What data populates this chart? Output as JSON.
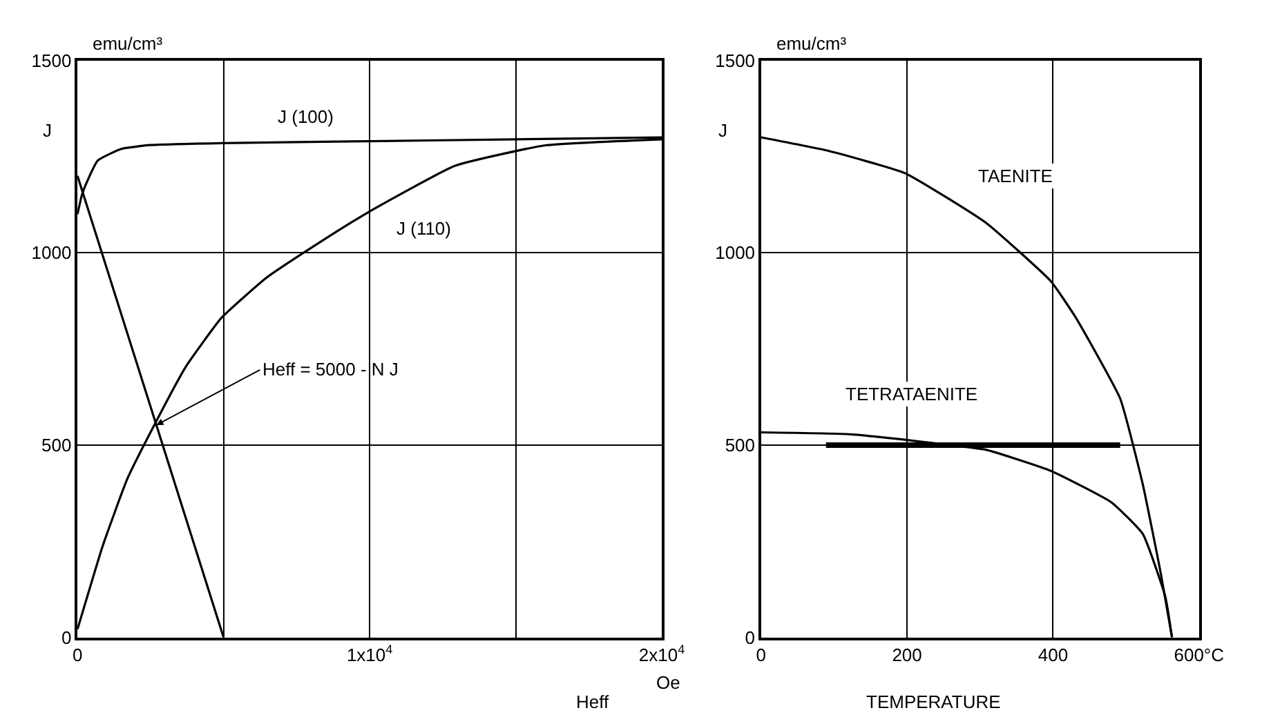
{
  "chart_data": [
    {
      "type": "line",
      "xlabel": "Heff",
      "ylabel": "J",
      "xlim": [
        0,
        20000
      ],
      "ylim": [
        0,
        1500
      ],
      "xticks": [
        0,
        {
          "value": 5000,
          "label": null
        },
        {
          "value": 10000,
          "label": "1x10$^{4}$"
        },
        {
          "value": 15000,
          "label": null
        },
        {
          "value": 20000,
          "label": "2x10$^{4}$"
        }
      ],
      "yticks": [
        0,
        500,
        1000,
        1500
      ],
      "grid": true,
      "marker": "none",
      "line_style": "solid",
      "series": [
        {
          "color": "#000000",
          "x": [
            0,
            150,
            300,
            700,
            1500,
            2500,
            5000,
            10000,
            15000,
            20000
          ],
          "values": [
            1100,
            1150,
            1180,
            1240,
            1270,
            1280,
            1285,
            1290,
            1295,
            1300
          ]
        },
        {
          "color": "#000000",
          "x": [
            0,
            860,
            1705,
            2705,
            3701,
            4931,
            6466,
            8310,
            9923,
            12918,
            15990,
            20000
          ],
          "values": [
            21,
            237,
            412,
            563,
            703,
            831,
            935,
            1028,
            1104,
            1226,
            1279,
            1295
          ]
        },
        {
          "color": "#000000",
          "x": [
            0,
            5000
          ],
          "values": [
            1200,
            0
          ]
        }
      ],
      "annotations": [
        "J (100)",
        "J (110)",
        {
          "text": "Heff = 5000 - N J",
          "x": 2700,
          "y": 552
        },
        "emu/cm³",
        "Oe"
      ]
    },
    {
      "type": "line",
      "xlabel": "TEMPERATURE",
      "ylabel": "J",
      "xlim": [
        0,
        600
      ],
      "ylim": [
        0,
        1500
      ],
      "xticks": [
        0,
        200,
        400,
        {
          "value": 600,
          "label": "600°C"
        }
      ],
      "yticks": [
        0,
        500,
        1000,
        1500
      ],
      "grid": true,
      "marker": "none",
      "line_style": "solid",
      "series": [
        {
          "color": "#000000",
          "x": [
            0,
            92,
            197,
            308,
            397,
            431,
            492,
            523,
            548,
            563
          ],
          "values": [
            1300,
            1265,
            1207,
            1078,
            926,
            832,
            621,
            398,
            163,
            0
          ]
        },
        {
          "color": "#000000",
          "x": [
            0,
            123,
            246,
            308,
            397,
            480,
            523,
            554,
            563
          ],
          "values": [
            533,
            528,
            503,
            488,
            433,
            351,
            269,
            105,
            0
          ]
        },
        {
          "color": "#000000",
          "x": [
            89,
            492
          ],
          "values": [
            500,
            500
          ]
        }
      ],
      "annotations": [
        "TAENITE",
        "TETRATAENITE",
        "emu/cm³"
      ]
    }
  ]
}
